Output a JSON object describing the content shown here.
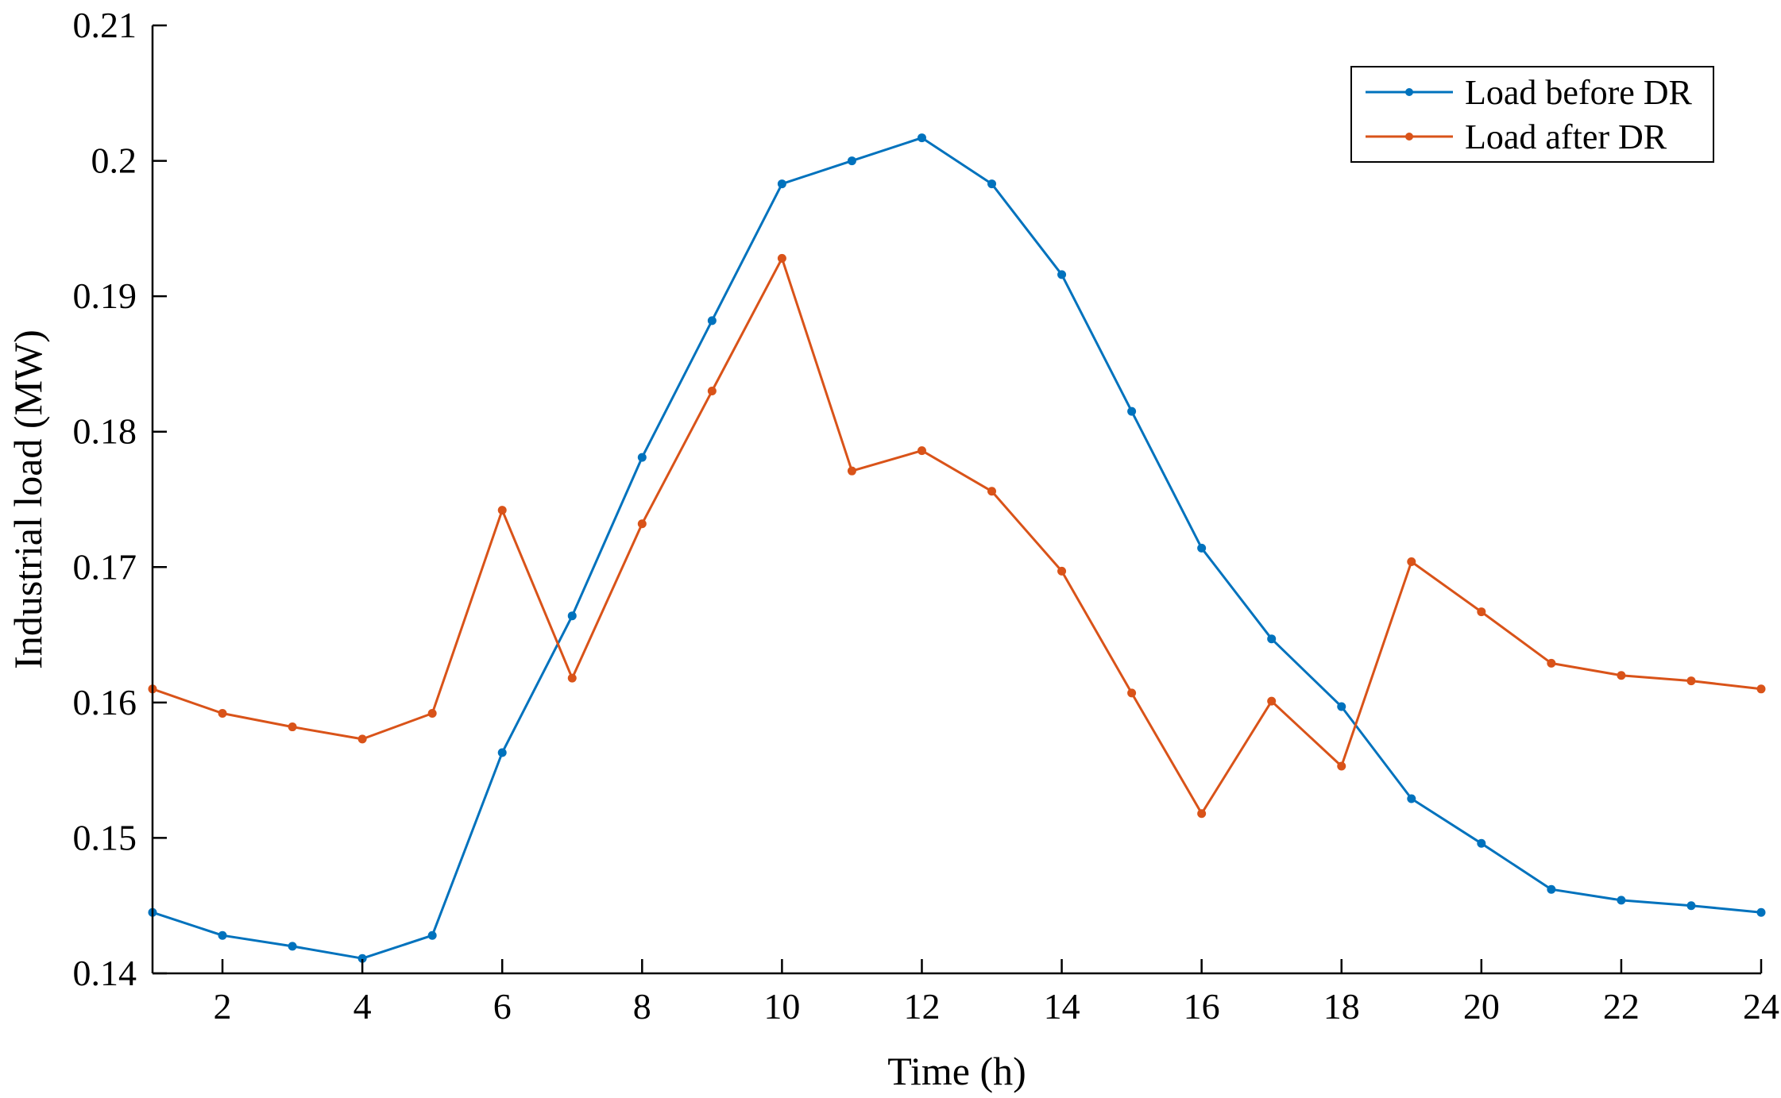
{
  "chart_data": {
    "type": "line",
    "xlabel": "Time (h)",
    "ylabel": "Industrial load (MW)",
    "xlim": [
      1,
      24
    ],
    "ylim": [
      0.14,
      0.21
    ],
    "xticks": [
      2,
      4,
      6,
      8,
      10,
      12,
      14,
      16,
      18,
      20,
      22,
      24
    ],
    "yticks": [
      0.14,
      0.15,
      0.16,
      0.17,
      0.18,
      0.19,
      0.2,
      0.21
    ],
    "xtick_labels": [
      "2",
      "4",
      "6",
      "8",
      "10",
      "12",
      "14",
      "16",
      "18",
      "20",
      "22",
      "24"
    ],
    "ytick_labels": [
      "0.14",
      "0.15",
      "0.16",
      "0.17",
      "0.18",
      "0.19",
      "0.2",
      "0.21"
    ],
    "grid": false,
    "legend_position": "top-right",
    "x": [
      1,
      2,
      3,
      4,
      5,
      6,
      7,
      8,
      9,
      10,
      11,
      12,
      13,
      14,
      15,
      16,
      17,
      18,
      19,
      20,
      21,
      22,
      23,
      24
    ],
    "series": [
      {
        "name": "Load before DR",
        "color": "#0072BD",
        "values": [
          0.1445,
          0.1428,
          0.142,
          0.1411,
          0.1428,
          0.1563,
          0.1664,
          0.1781,
          0.1882,
          0.1983,
          0.2,
          0.2017,
          0.1983,
          0.1916,
          0.1815,
          0.1714,
          0.1647,
          0.1597,
          0.1529,
          0.1496,
          0.1462,
          0.1454,
          0.145,
          0.1445
        ]
      },
      {
        "name": "Load after DR",
        "color": "#D95319",
        "values": [
          0.161,
          0.1592,
          0.1582,
          0.1573,
          0.1592,
          0.1742,
          0.1618,
          0.1732,
          0.183,
          0.1928,
          0.1771,
          0.1786,
          0.1756,
          0.1697,
          0.1607,
          0.1518,
          0.1601,
          0.1553,
          0.1704,
          0.1667,
          0.1629,
          0.162,
          0.1616,
          0.161
        ]
      }
    ]
  }
}
